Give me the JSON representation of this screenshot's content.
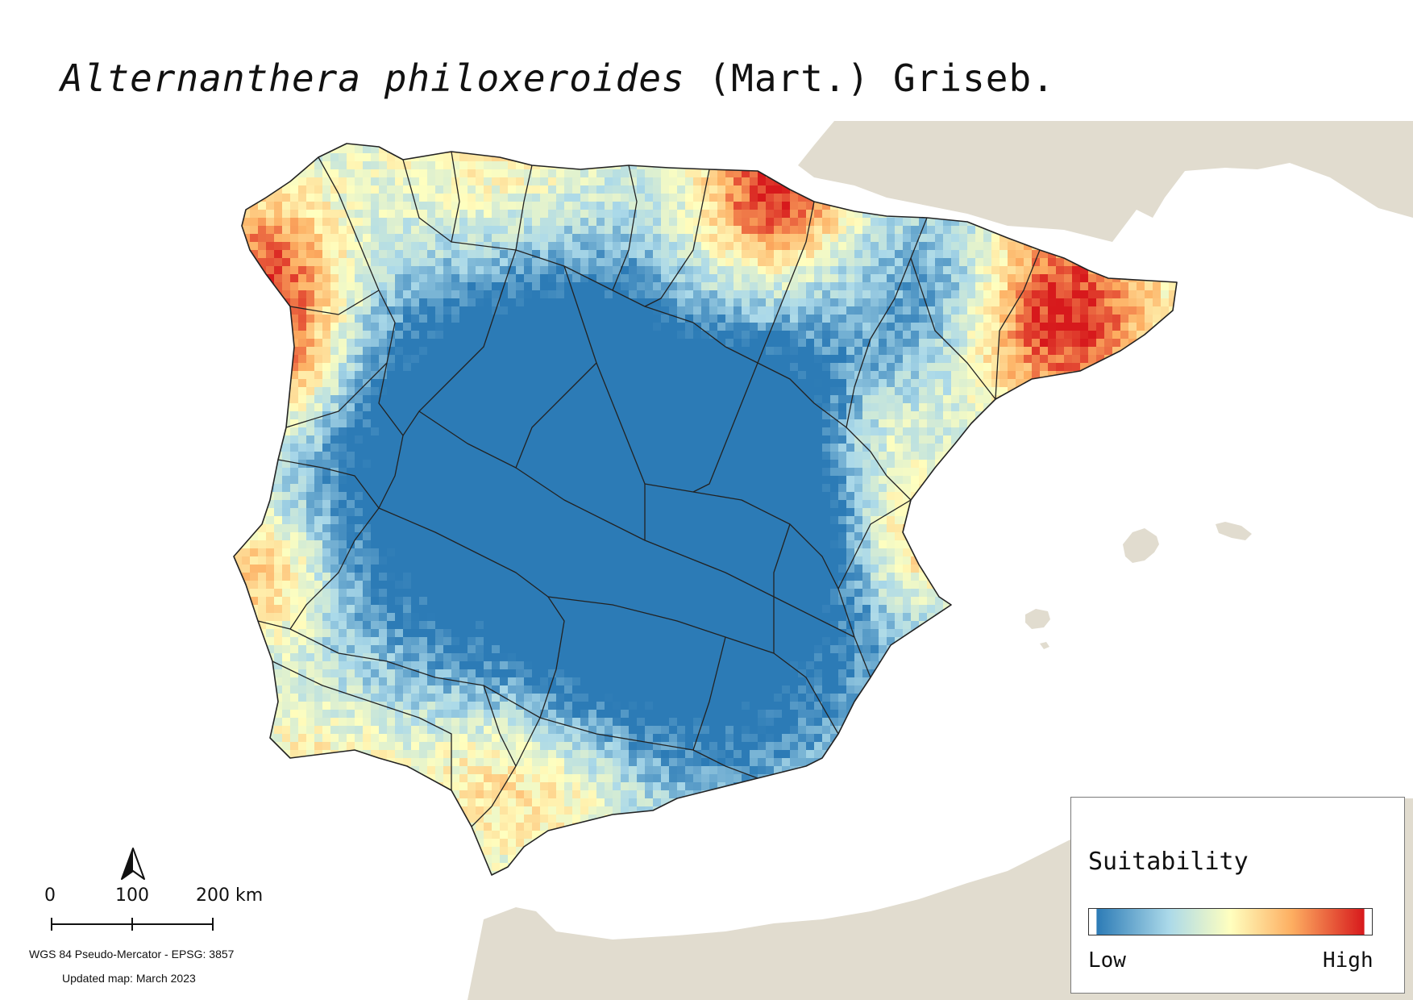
{
  "title": {
    "species_italic": "Alternanthera philoxeroides",
    "authority": " (Mart.) Griseb."
  },
  "map": {
    "colors": {
      "land_background": "#e1dccf",
      "sea": "#ffffff",
      "boundary": "#222222",
      "suitability_low": "#2c7bb6",
      "suitability_mid_low": "#abd9e9",
      "suitability_mid": "#ffffbf",
      "suitability_mid_high": "#fdae61",
      "suitability_high": "#d7191c"
    }
  },
  "scalebar": {
    "label_0": "0",
    "label_100": "100",
    "label_200": "200 km"
  },
  "footer": {
    "projection": "WGS 84 Pseudo-Mercator  - EPSG: 3857",
    "updated": "Updated map: March 2023"
  },
  "legend": {
    "title": "Suitability",
    "low": "Low",
    "high": "High"
  },
  "icons": {
    "north_arrow": "north-arrow-icon"
  }
}
